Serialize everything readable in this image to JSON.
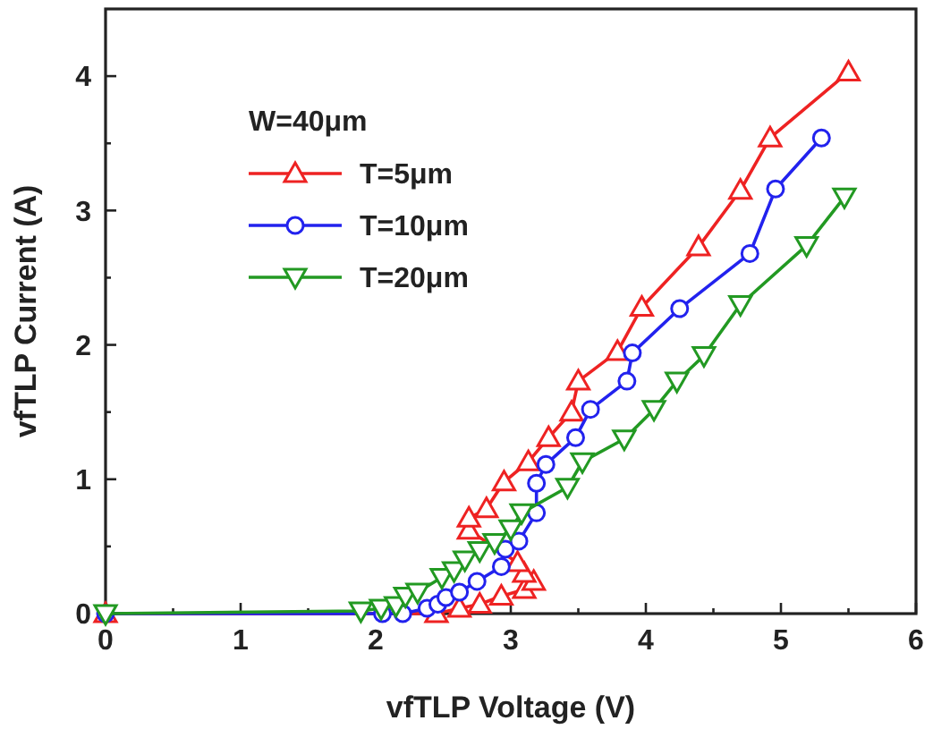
{
  "chart_data": {
    "type": "line",
    "xlabel": "vfTLP Voltage (V)",
    "ylabel": "vfTLP Current (A)",
    "legend_title": "W=40μm",
    "legend": "top left",
    "grid": false,
    "xlim": [
      0,
      6
    ],
    "ylim": [
      0,
      4.5
    ],
    "xticks": [
      0,
      {
        "value": 0.5,
        "label": null
      },
      1,
      {
        "value": 1.5,
        "label": null
      },
      2,
      {
        "value": 2.5,
        "label": null
      },
      3,
      {
        "value": 3.5,
        "label": null
      },
      4,
      {
        "value": 4.5,
        "label": null
      },
      5,
      {
        "value": 5.5,
        "label": null
      },
      6
    ],
    "yticks": [
      0,
      {
        "value": 0.5,
        "label": null
      },
      1,
      {
        "value": 1.5,
        "label": null
      },
      2,
      {
        "value": 2.5,
        "label": null
      },
      3,
      {
        "value": 3.5,
        "label": null
      },
      4
    ],
    "series": [
      {
        "name": "T=5μm",
        "color": "#ee2222",
        "marker": "triangle",
        "x": [
          0,
          2.45,
          2.62,
          2.77,
          2.93,
          3.1,
          3.17,
          3.1,
          3.05,
          2.69,
          2.69,
          2.82,
          2.95,
          3.13,
          3.28,
          3.45,
          3.5,
          3.79,
          3.97,
          4.39,
          4.7,
          4.92,
          5.5
        ],
        "values": [
          0,
          0,
          0.04,
          0.07,
          0.13,
          0.18,
          0.24,
          0.3,
          0.38,
          0.62,
          0.71,
          0.78,
          0.98,
          1.13,
          1.31,
          1.5,
          1.73,
          1.95,
          2.28,
          2.73,
          3.15,
          3.54,
          4.03
        ]
      },
      {
        "name": "T=10μm",
        "color": "#2222ee",
        "marker": "circle",
        "x": [
          0,
          2.05,
          2.2,
          2.38,
          2.46,
          2.52,
          2.62,
          2.75,
          2.93,
          2.96,
          3.06,
          3.19,
          3.19,
          3.26,
          3.48,
          3.59,
          3.86,
          3.9,
          4.25,
          4.77,
          4.96,
          5.3
        ],
        "values": [
          0,
          0,
          0,
          0.04,
          0.07,
          0.12,
          0.16,
          0.24,
          0.35,
          0.48,
          0.54,
          0.75,
          0.97,
          1.11,
          1.31,
          1.52,
          1.73,
          1.94,
          2.27,
          2.68,
          3.16,
          3.54
        ]
      },
      {
        "name": "T=20μm",
        "color": "#229922",
        "marker": "triangle-down",
        "x": [
          0,
          1.89,
          2.04,
          2.15,
          2.22,
          2.31,
          2.49,
          2.58,
          2.66,
          2.77,
          2.88,
          3.0,
          3.08,
          3.42,
          3.53,
          3.84,
          4.06,
          4.23,
          4.43,
          4.7,
          5.19,
          5.47
        ],
        "values": [
          0,
          0.02,
          0.04,
          0.06,
          0.13,
          0.16,
          0.27,
          0.32,
          0.4,
          0.47,
          0.53,
          0.63,
          0.75,
          0.94,
          1.13,
          1.3,
          1.52,
          1.73,
          1.92,
          2.3,
          2.74,
          3.1
        ]
      }
    ]
  }
}
